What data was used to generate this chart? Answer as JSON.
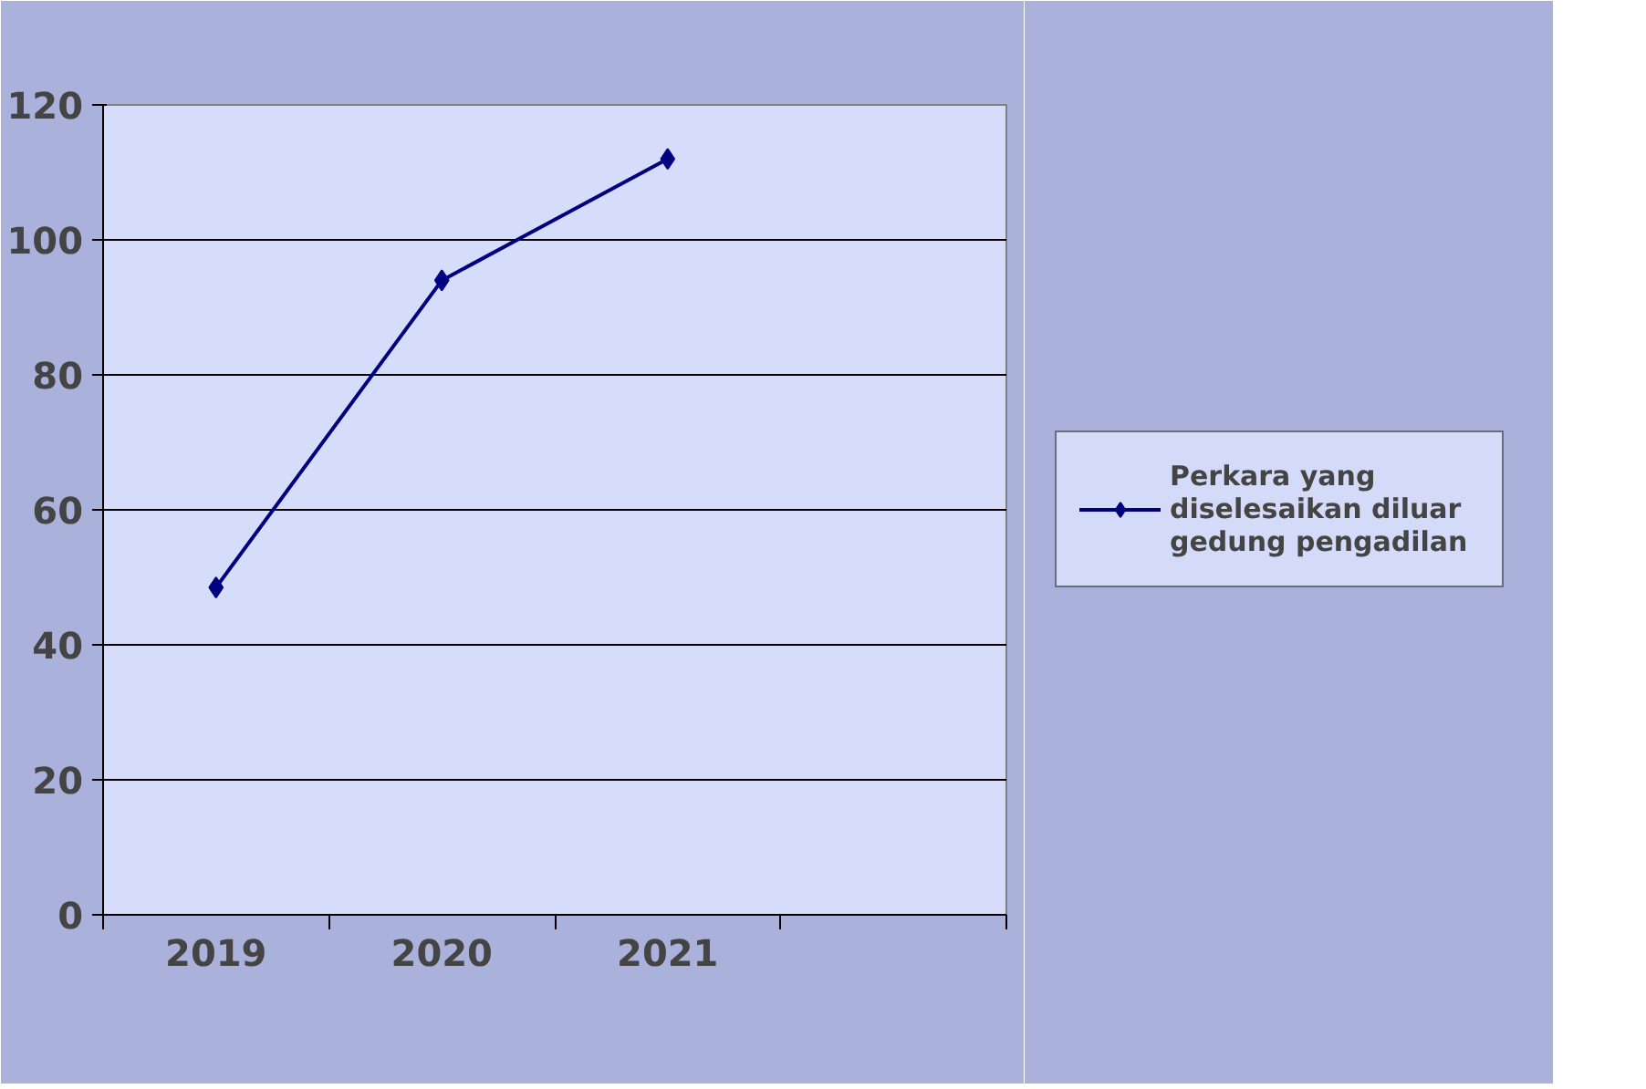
{
  "chart_data": {
    "type": "line",
    "categories": [
      "2019",
      "2020",
      "2021",
      null
    ],
    "series": [
      {
        "name": "Perkara yang diselesaikan diluar gedung pengadilan",
        "color": "#000080",
        "values": [
          48.5,
          94,
          112,
          null
        ]
      }
    ],
    "ylim": [
      0,
      120
    ],
    "yticks": [
      0,
      20,
      40,
      60,
      80,
      100,
      120
    ],
    "grid": "y",
    "legend": "right",
    "marker": "diamond",
    "line_style": "solid"
  }
}
